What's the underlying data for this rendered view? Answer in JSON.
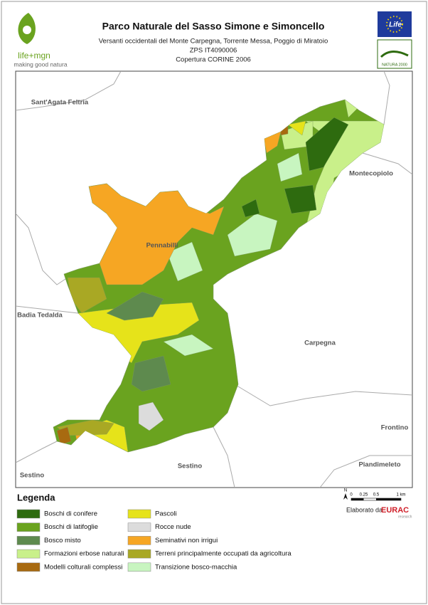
{
  "header": {
    "title": "Parco Naturale del Sasso Simone e Simoncello",
    "subtitle_lines": [
      "Versanti occidentali del Monte Carpegna, Torrente Messa, Poggio di Miratoio",
      "ZPS IT4090006",
      "Copertura CORINE 2006"
    ],
    "logo_left": [
      "life+mgn",
      "making good natura"
    ],
    "logo_right": [
      "Life",
      "NATURA 2000"
    ]
  },
  "places": [
    "Sant'Agata Feltria",
    "Montecopiolo",
    "Pennabilli",
    "Badia Tedalda",
    "Carpegna",
    "Frontino",
    "Sestino",
    "Sestino",
    "Piandimeleto"
  ],
  "legend": {
    "title": "Legenda",
    "items": [
      {
        "label": "Boschi di conifere",
        "color": "#2e6b0f"
      },
      {
        "label": "Boschi di latifoglie",
        "color": "#6aa31f"
      },
      {
        "label": "Bosco misto",
        "color": "#5e8a4e"
      },
      {
        "label": "Formazioni erbose naturali",
        "color": "#c9f08a"
      },
      {
        "label": "Modelli colturali complessi",
        "color": "#a86a10"
      },
      {
        "label": "Pascoli",
        "color": "#e6e31a"
      },
      {
        "label": "Rocce nude",
        "color": "#dcdcdc"
      },
      {
        "label": "Seminativi non irrigui",
        "color": "#f6a623"
      },
      {
        "label": "Terreni principalmente occupati da agricoltura",
        "color": "#a9a824"
      },
      {
        "label": "Transizione bosco-macchia",
        "color": "#c8f5c0"
      }
    ]
  },
  "scale": {
    "north": "N",
    "labels": [
      "0",
      "0.25",
      "0.5",
      "1 km"
    ]
  },
  "credit": {
    "text": "Elaborato da",
    "logo": "EURAC",
    "logo_sub": "research"
  }
}
